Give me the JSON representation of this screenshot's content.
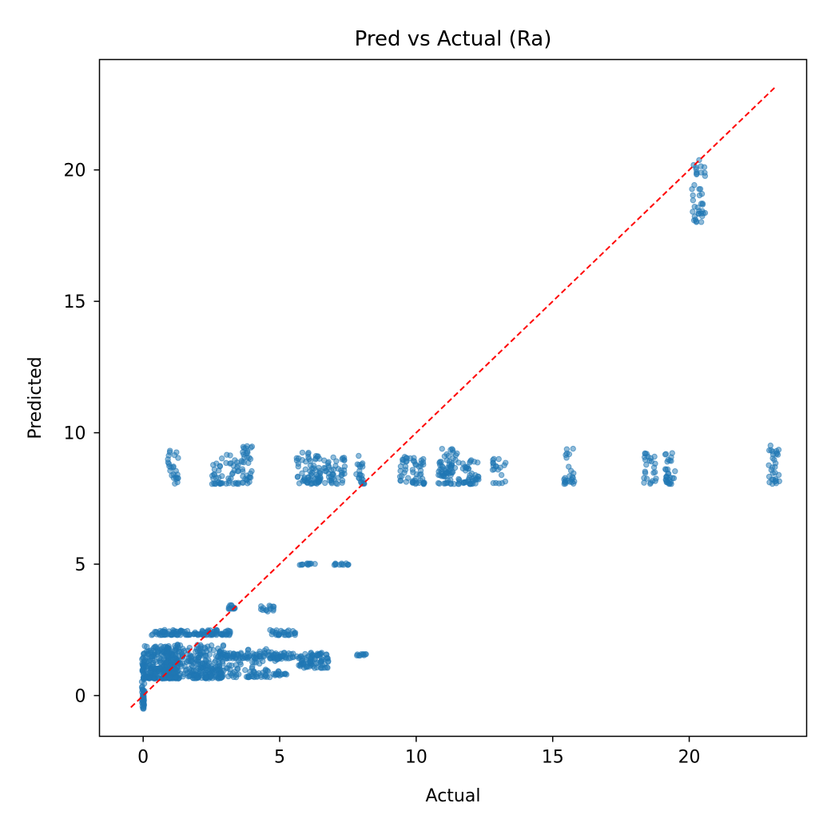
{
  "chart_data": {
    "type": "scatter",
    "title": "Pred vs Actual (Ra)",
    "xlabel": "Actual",
    "ylabel": "Predicted",
    "xlim": [
      -1.6,
      24.3
    ],
    "ylim": [
      -1.55,
      24.2
    ],
    "xticks": [
      0,
      5,
      10,
      15,
      20
    ],
    "yticks": [
      0,
      5,
      10,
      15,
      20
    ],
    "grid": false,
    "legend": "none",
    "colors": {
      "points": "#1f77b4",
      "reference_line": "#ff0000"
    },
    "reference_line": {
      "style": "dashed",
      "from": [
        -0.45,
        -0.45
      ],
      "to": [
        23.2,
        23.2
      ]
    },
    "point_clusters": [
      {
        "name": "zero-actual",
        "x_range": [
          -0.05,
          0.05
        ],
        "y_range": [
          -0.5,
          1.6
        ],
        "count": 60
      },
      {
        "name": "low-dense-1",
        "x_range": [
          0,
          1.3
        ],
        "y_range": [
          0.65,
          1.9
        ],
        "count": 260
      },
      {
        "name": "low-dense-2",
        "x_range": [
          0.8,
          3.0
        ],
        "y_range": [
          0.65,
          2.0
        ],
        "count": 260
      },
      {
        "name": "low-mid",
        "x_range": [
          1.9,
          5.0
        ],
        "y_range": [
          0.7,
          1.8
        ],
        "count": 120
      },
      {
        "name": "band-2.4",
        "x_range": [
          0.3,
          3.2
        ],
        "y_range": [
          2.3,
          2.5
        ],
        "count": 120
      },
      {
        "name": "band-3.4",
        "x_range": [
          3.1,
          3.4
        ],
        "y_range": [
          3.3,
          3.45
        ],
        "count": 12
      },
      {
        "name": "band-3.3b",
        "x_range": [
          4.3,
          4.8
        ],
        "y_range": [
          3.2,
          3.45
        ],
        "count": 14
      },
      {
        "name": "band-2.4b",
        "x_range": [
          4.6,
          5.6
        ],
        "y_range": [
          2.3,
          2.5
        ],
        "count": 30
      },
      {
        "name": "band-1.5",
        "x_range": [
          3.0,
          6.8
        ],
        "y_range": [
          1.4,
          1.65
        ],
        "count": 120
      },
      {
        "name": "drop-0.85",
        "x_range": [
          4.8,
          5.3
        ],
        "y_range": [
          0.8,
          0.9
        ],
        "count": 12
      },
      {
        "name": "mid-1.2",
        "x_range": [
          5.7,
          6.8
        ],
        "y_range": [
          1.05,
          1.4
        ],
        "count": 50
      },
      {
        "name": "band-5a",
        "x_range": [
          5.7,
          6.3
        ],
        "y_range": [
          4.97,
          5.03
        ],
        "count": 12
      },
      {
        "name": "band-5b",
        "x_range": [
          7.0,
          7.6
        ],
        "y_range": [
          4.97,
          5.03
        ],
        "count": 12
      },
      {
        "name": "band-1.55",
        "x_range": [
          7.8,
          8.2
        ],
        "y_range": [
          1.52,
          1.58
        ],
        "count": 10
      },
      {
        "name": "col-1.1",
        "x_range": [
          0.9,
          1.3
        ],
        "y_range": [
          8.05,
          9.4
        ],
        "count": 25
      },
      {
        "name": "col-2.8",
        "x_range": [
          2.5,
          2.9
        ],
        "y_range": [
          8.05,
          9.1
        ],
        "count": 25
      },
      {
        "name": "col-3.3",
        "x_range": [
          3.0,
          3.5
        ],
        "y_range": [
          8.05,
          9.2
        ],
        "count": 25
      },
      {
        "name": "col-3.8",
        "x_range": [
          3.6,
          4.0
        ],
        "y_range": [
          8.05,
          9.5
        ],
        "count": 35
      },
      {
        "name": "col-6.0",
        "x_range": [
          5.6,
          6.5
        ],
        "y_range": [
          8.05,
          9.3
        ],
        "count": 70
      },
      {
        "name": "col-7.0",
        "x_range": [
          6.6,
          7.4
        ],
        "y_range": [
          8.05,
          9.1
        ],
        "count": 45
      },
      {
        "name": "col-7.9",
        "x_range": [
          7.8,
          8.1
        ],
        "y_range": [
          8.05,
          9.2
        ],
        "count": 22
      },
      {
        "name": "col-10",
        "x_range": [
          9.4,
          10.3
        ],
        "y_range": [
          8.05,
          9.1
        ],
        "count": 55
      },
      {
        "name": "col-11.2",
        "x_range": [
          10.8,
          11.6
        ],
        "y_range": [
          8.05,
          9.4
        ],
        "count": 70
      },
      {
        "name": "col-12",
        "x_range": [
          11.6,
          12.3
        ],
        "y_range": [
          8.05,
          9.0
        ],
        "count": 40
      },
      {
        "name": "col-13",
        "x_range": [
          12.8,
          13.3
        ],
        "y_range": [
          8.05,
          9.1
        ],
        "count": 20
      },
      {
        "name": "col-15.6",
        "x_range": [
          15.4,
          15.8
        ],
        "y_range": [
          8.05,
          9.4
        ],
        "count": 25
      },
      {
        "name": "col-18.6",
        "x_range": [
          18.3,
          18.8
        ],
        "y_range": [
          8.05,
          9.3
        ],
        "count": 25
      },
      {
        "name": "col-19.3",
        "x_range": [
          19.1,
          19.5
        ],
        "y_range": [
          8.05,
          9.3
        ],
        "count": 30
      },
      {
        "name": "col-23",
        "x_range": [
          22.9,
          23.3
        ],
        "y_range": [
          8.05,
          9.6
        ],
        "count": 30
      },
      {
        "name": "col-20.4",
        "x_range": [
          20.1,
          20.6
        ],
        "y_range": [
          18.0,
          20.4
        ],
        "count": 40
      }
    ]
  }
}
